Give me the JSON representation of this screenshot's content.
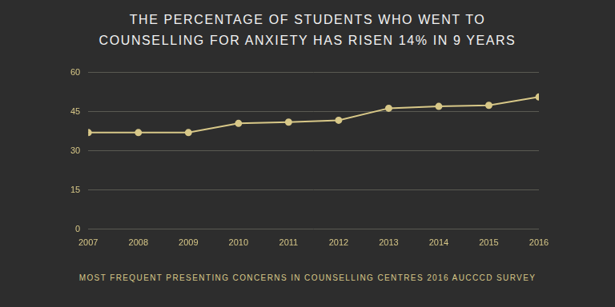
{
  "chart_data": {
    "type": "line",
    "title": "THE PERCENTAGE OF STUDENTS WHO WENT TO COUNSELLING FOR ANXIETY HAS RISEN 14% IN 9 YEARS",
    "subtitle": "MOST FREQUENT PRESENTING CONCERNS IN COUNSELLING CENTRES 2016 AUCCCD SURVEY",
    "categories": [
      "2007",
      "2008",
      "2009",
      "2010",
      "2011",
      "2012",
      "2013",
      "2014",
      "2015",
      "2016"
    ],
    "values": [
      37,
      37,
      37,
      40.5,
      41,
      41.7,
      46.3,
      47,
      47.4,
      50.6
    ],
    "color": "#d8c888",
    "marker": "circle",
    "line_style": "solid",
    "ylim": [
      0,
      60
    ],
    "yticks": [
      0,
      15,
      30,
      45,
      60
    ],
    "grid": true
  }
}
